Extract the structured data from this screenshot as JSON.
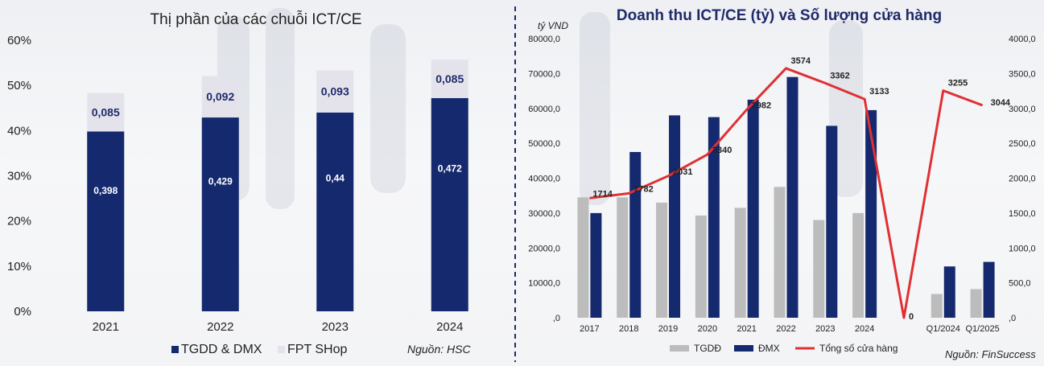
{
  "colors": {
    "navy": "#15296e",
    "light": "#e4e3ec",
    "gray": "#bcbcbc",
    "red": "#e03033",
    "divider": "#1f2a6b"
  },
  "chart_data": [
    {
      "type": "bar",
      "stacked": true,
      "title": "Thị phần của các chuỗi ICT/CE",
      "categories": [
        "2021",
        "2022",
        "2023",
        "2024"
      ],
      "ylim": [
        0,
        0.6
      ],
      "y_ticks": [
        0,
        0.1,
        0.2,
        0.3,
        0.4,
        0.5,
        0.6
      ],
      "y_tick_labels": [
        "0%",
        "10%",
        "20%",
        "30%",
        "40%",
        "50%",
        "60%"
      ],
      "series": [
        {
          "name": "TGDD & DMX",
          "values": [
            0.398,
            0.429,
            0.44,
            0.472
          ],
          "labels": [
            "0,398",
            "0,429",
            "0,44",
            "0,472"
          ]
        },
        {
          "name": "FPT SHop",
          "values": [
            0.085,
            0.092,
            0.093,
            0.085
          ],
          "labels": [
            "0,085",
            "0,092",
            "0,093",
            "0,085"
          ]
        }
      ],
      "grid": false,
      "legend": "bottom",
      "source": "Nguồn: HSC"
    },
    {
      "type": "bar+line",
      "title": "Doanh thu ICT/CE (tỷ) và Số lượng cửa hàng",
      "left_unit": "tỷ VND",
      "categories": [
        "2017",
        "2018",
        "2019",
        "2020",
        "2021",
        "2022",
        "2023",
        "2024",
        "",
        "Q1/2024",
        "Q1/2025"
      ],
      "ylim_left": [
        0,
        80000
      ],
      "y_left_ticks": [
        0,
        10000,
        20000,
        30000,
        40000,
        50000,
        60000,
        70000,
        80000
      ],
      "y_left_tick_labels": [
        ",0",
        "10000,0",
        "20000,0",
        "30000,0",
        "40000,0",
        "50000,0",
        "60000,0",
        "70000,0",
        "80000,0"
      ],
      "ylim_right": [
        0,
        4000
      ],
      "y_right_ticks": [
        0,
        500,
        1000,
        1500,
        2000,
        2500,
        3000,
        3500,
        4000
      ],
      "y_right_tick_labels": [
        ",0",
        "500,0",
        "1000,0",
        "1500,0",
        "2000,0",
        "2500,0",
        "3000,0",
        "3500,0",
        "4000,0"
      ],
      "series": [
        {
          "name": "TGDĐ",
          "kind": "bar",
          "axis": "left",
          "values": [
            34500,
            34500,
            33000,
            29300,
            31500,
            37500,
            28000,
            30000,
            null,
            6800,
            8200
          ]
        },
        {
          "name": "ĐMX",
          "kind": "bar",
          "axis": "left",
          "values": [
            30000,
            47500,
            58000,
            57500,
            62500,
            69000,
            55000,
            59500,
            null,
            14700,
            16000
          ]
        },
        {
          "name": "Tổng số cửa hàng",
          "kind": "line",
          "axis": "right",
          "values": [
            1714,
            1782,
            2031,
            2340,
            2982,
            3574,
            3362,
            3133,
            0,
            3255,
            3044
          ],
          "labels": [
            "1714",
            "1782",
            "2031",
            "2340",
            "2982",
            "3574",
            "3362",
            "3133",
            "0",
            "3255",
            "3044"
          ]
        }
      ],
      "grid": false,
      "legend": "bottom",
      "source": "Nguồn: FinSuccess"
    }
  ]
}
